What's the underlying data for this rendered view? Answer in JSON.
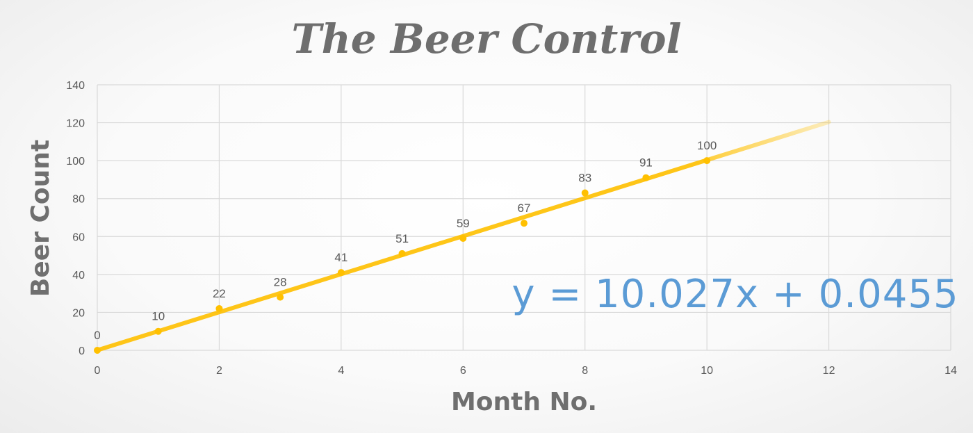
{
  "chart_data": {
    "type": "scatter",
    "title": "The Beer Control",
    "xlabel": "Month No.",
    "ylabel": "Beer Count",
    "xlim": [
      0,
      14
    ],
    "ylim": [
      0,
      140
    ],
    "x_ticks": [
      0,
      2,
      4,
      6,
      8,
      10,
      12,
      14
    ],
    "y_ticks": [
      0,
      20,
      40,
      60,
      80,
      100,
      120,
      140
    ],
    "grid": true,
    "legend": "none",
    "series": [
      {
        "x": [
          0,
          1,
          2,
          3,
          4,
          5,
          6,
          7,
          8,
          9,
          10
        ],
        "y": [
          0,
          10,
          22,
          28,
          41,
          51,
          59,
          67,
          83,
          91,
          100
        ],
        "labels": [
          "0",
          "10",
          "22",
          "28",
          "41",
          "51",
          "59",
          "67",
          "83",
          "91",
          "100"
        ],
        "color": "#ffc000"
      }
    ],
    "trendline": {
      "type": "linear",
      "slope": 10.027,
      "intercept": 0.0455,
      "x_range": [
        0,
        12
      ],
      "forecast_from": 10,
      "color": "#ffc000",
      "equation": "y = 10.027x + 0.0455",
      "equation_color": "#5b9bd5"
    }
  }
}
